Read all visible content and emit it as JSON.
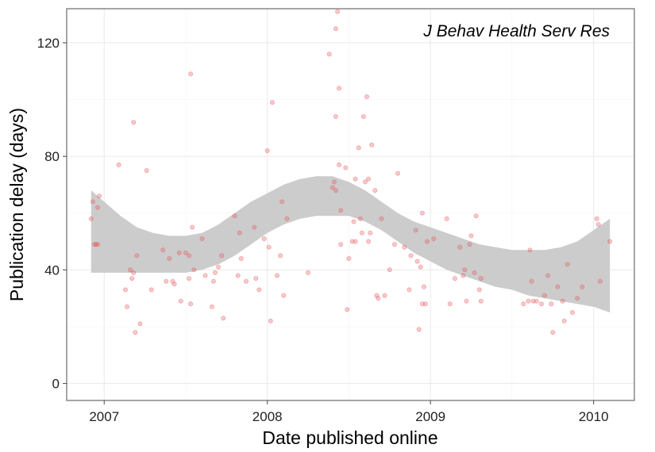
{
  "chart_data": {
    "type": "scatter",
    "title": "",
    "xlabel": "Date published online",
    "ylabel": "Publication delay (days)",
    "annotation": "J Behav Health Serv Res",
    "xlim": [
      2006.77,
      2010.25
    ],
    "ylim": [
      -6,
      132
    ],
    "x_ticks": [
      2007,
      2008,
      2009,
      2010
    ],
    "x_tick_labels": [
      "2007",
      "2008",
      "2009",
      "2010"
    ],
    "y_ticks": [
      0,
      40,
      80,
      120
    ],
    "y_tick_labels": [
      "0",
      "40",
      "80",
      "120"
    ],
    "grid": true,
    "point_color": "#e8545a",
    "band_color": "#cccccc",
    "points": [
      [
        2006.92,
        58
      ],
      [
        2006.93,
        64
      ],
      [
        2006.94,
        49
      ],
      [
        2006.95,
        49
      ],
      [
        2006.96,
        62
      ],
      [
        2006.97,
        66
      ],
      [
        2006.96,
        49
      ],
      [
        2007.09,
        77
      ],
      [
        2007.13,
        33
      ],
      [
        2007.14,
        27
      ],
      [
        2007.16,
        40
      ],
      [
        2007.17,
        37
      ],
      [
        2007.18,
        39
      ],
      [
        2007.18,
        92
      ],
      [
        2007.19,
        18
      ],
      [
        2007.2,
        45
      ],
      [
        2007.22,
        21
      ],
      [
        2007.26,
        75
      ],
      [
        2007.29,
        33
      ],
      [
        2007.36,
        47
      ],
      [
        2007.38,
        36
      ],
      [
        2007.4,
        44
      ],
      [
        2007.42,
        36
      ],
      [
        2007.43,
        35
      ],
      [
        2007.46,
        46
      ],
      [
        2007.47,
        29
      ],
      [
        2007.5,
        46
      ],
      [
        2007.52,
        37
      ],
      [
        2007.52,
        45
      ],
      [
        2007.53,
        28
      ],
      [
        2007.53,
        109
      ],
      [
        2007.54,
        55
      ],
      [
        2007.55,
        40
      ],
      [
        2007.6,
        51
      ],
      [
        2007.62,
        38
      ],
      [
        2007.66,
        27
      ],
      [
        2007.67,
        36
      ],
      [
        2007.68,
        39
      ],
      [
        2007.7,
        41
      ],
      [
        2007.72,
        45
      ],
      [
        2007.73,
        23
      ],
      [
        2007.8,
        59
      ],
      [
        2007.82,
        38
      ],
      [
        2007.83,
        53
      ],
      [
        2007.84,
        44
      ],
      [
        2007.87,
        36
      ],
      [
        2007.92,
        55
      ],
      [
        2007.93,
        37
      ],
      [
        2007.95,
        33
      ],
      [
        2007.98,
        51
      ],
      [
        2008.0,
        82
      ],
      [
        2008.01,
        48
      ],
      [
        2008.02,
        22
      ],
      [
        2008.03,
        99
      ],
      [
        2008.06,
        38
      ],
      [
        2008.08,
        45
      ],
      [
        2008.09,
        64
      ],
      [
        2008.1,
        31
      ],
      [
        2008.12,
        58
      ],
      [
        2008.25,
        39
      ],
      [
        2008.38,
        116
      ],
      [
        2008.4,
        69
      ],
      [
        2008.41,
        71
      ],
      [
        2008.42,
        125
      ],
      [
        2008.42,
        68
      ],
      [
        2008.42,
        94
      ],
      [
        2008.43,
        131
      ],
      [
        2008.44,
        104
      ],
      [
        2008.44,
        77
      ],
      [
        2008.45,
        61
      ],
      [
        2008.45,
        49
      ],
      [
        2008.48,
        76
      ],
      [
        2008.49,
        26
      ],
      [
        2008.5,
        44
      ],
      [
        2008.52,
        50
      ],
      [
        2008.53,
        57
      ],
      [
        2008.54,
        72
      ],
      [
        2008.54,
        50
      ],
      [
        2008.56,
        83
      ],
      [
        2008.57,
        58
      ],
      [
        2008.58,
        53
      ],
      [
        2008.59,
        94
      ],
      [
        2008.6,
        71
      ],
      [
        2008.61,
        101
      ],
      [
        2008.62,
        72
      ],
      [
        2008.62,
        50
      ],
      [
        2008.63,
        53
      ],
      [
        2008.64,
        84
      ],
      [
        2008.66,
        68
      ],
      [
        2008.67,
        31
      ],
      [
        2008.68,
        30
      ],
      [
        2008.7,
        58
      ],
      [
        2008.72,
        31
      ],
      [
        2008.75,
        40
      ],
      [
        2008.78,
        49
      ],
      [
        2008.8,
        74
      ],
      [
        2008.84,
        48
      ],
      [
        2008.87,
        33
      ],
      [
        2008.88,
        45
      ],
      [
        2008.91,
        54
      ],
      [
        2008.92,
        43
      ],
      [
        2008.93,
        19
      ],
      [
        2008.94,
        41
      ],
      [
        2008.95,
        60
      ],
      [
        2008.95,
        28
      ],
      [
        2008.96,
        34
      ],
      [
        2008.97,
        28
      ],
      [
        2008.98,
        50
      ],
      [
        2009.02,
        51
      ],
      [
        2009.1,
        58
      ],
      [
        2009.12,
        28
      ],
      [
        2009.15,
        37
      ],
      [
        2009.18,
        48
      ],
      [
        2009.2,
        38
      ],
      [
        2009.21,
        40
      ],
      [
        2009.22,
        29
      ],
      [
        2009.24,
        49
      ],
      [
        2009.25,
        52
      ],
      [
        2009.27,
        39
      ],
      [
        2009.28,
        59
      ],
      [
        2009.3,
        33
      ],
      [
        2009.31,
        37
      ],
      [
        2009.31,
        29
      ],
      [
        2009.61,
        47
      ],
      [
        2009.62,
        36
      ],
      [
        2009.6,
        29
      ],
      [
        2009.57,
        28
      ],
      [
        2009.63,
        29
      ],
      [
        2009.65,
        29
      ],
      [
        2009.68,
        28
      ],
      [
        2009.7,
        31
      ],
      [
        2009.72,
        38
      ],
      [
        2009.74,
        28
      ],
      [
        2009.75,
        18
      ],
      [
        2009.78,
        34
      ],
      [
        2009.81,
        29
      ],
      [
        2009.82,
        22
      ],
      [
        2009.84,
        42
      ],
      [
        2009.87,
        25
      ],
      [
        2009.9,
        30
      ],
      [
        2009.93,
        34
      ],
      [
        2010.02,
        58
      ],
      [
        2010.03,
        56
      ],
      [
        2010.04,
        36
      ],
      [
        2010.1,
        50
      ]
    ],
    "smooth_band": {
      "x": [
        2006.92,
        2007.0,
        2007.1,
        2007.2,
        2007.3,
        2007.4,
        2007.5,
        2007.6,
        2007.7,
        2007.8,
        2007.9,
        2008.0,
        2008.1,
        2008.2,
        2008.3,
        2008.4,
        2008.5,
        2008.6,
        2008.7,
        2008.8,
        2008.9,
        2009.0,
        2009.1,
        2009.2,
        2009.3,
        2009.4,
        2009.5,
        2009.6,
        2009.7,
        2009.8,
        2009.9,
        2010.0,
        2010.1
      ],
      "upper": [
        68,
        64,
        59,
        55,
        53,
        52,
        52,
        53,
        56,
        60,
        64,
        67,
        70,
        72,
        73,
        73,
        71,
        68,
        64,
        60,
        57,
        55,
        53,
        51,
        49,
        48,
        47,
        47,
        47,
        48,
        50,
        54,
        58
      ],
      "lower": [
        39,
        39,
        39,
        39,
        39,
        39,
        39,
        40,
        42,
        45,
        49,
        53,
        56,
        58,
        59,
        59,
        59,
        57,
        54,
        50,
        46,
        43,
        40,
        38,
        36,
        34,
        33,
        31,
        30,
        29,
        28,
        27,
        25
      ]
    }
  }
}
